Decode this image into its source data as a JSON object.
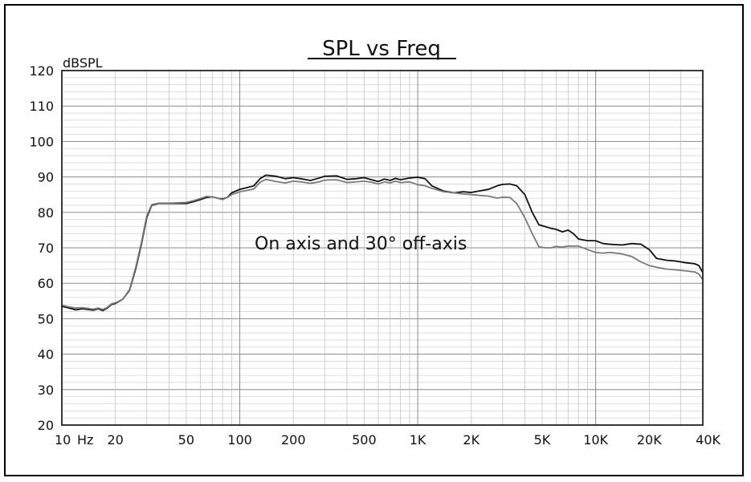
{
  "chart_data": {
    "type": "line",
    "title": "SPL vs Freq",
    "ylabel": "dBSPL",
    "xlabel": "",
    "x_scale": "log",
    "xlim": [
      10,
      40000
    ],
    "ylim": [
      20,
      120
    ],
    "grid": true,
    "y_ticks": [
      120,
      110,
      100,
      90,
      80,
      70,
      60,
      50,
      40,
      30,
      20
    ],
    "x_ticks": [
      {
        "value": 10,
        "label": "10"
      },
      {
        "value": 20,
        "label": "20"
      },
      {
        "value": 50,
        "label": "50"
      },
      {
        "value": 100,
        "label": "100"
      },
      {
        "value": 200,
        "label": "200"
      },
      {
        "value": 500,
        "label": "500"
      },
      {
        "value": 1000,
        "label": "1K"
      },
      {
        "value": 2000,
        "label": "2K"
      },
      {
        "value": 5000,
        "label": "5K"
      },
      {
        "value": 10000,
        "label": "10K"
      },
      {
        "value": 20000,
        "label": "20K"
      },
      {
        "value": 40000,
        "label": "40K"
      }
    ],
    "x_unit_label": "Hz",
    "annotation": "On axis and 30° off-axis",
    "series": [
      {
        "color": "#111111",
        "points": [
          [
            10,
            53.5
          ],
          [
            11,
            53
          ],
          [
            12,
            52.5
          ],
          [
            13,
            52.8
          ],
          [
            14,
            52.6
          ],
          [
            15,
            52.4
          ],
          [
            16,
            52.8
          ],
          [
            17,
            52.3
          ],
          [
            18,
            53
          ],
          [
            19,
            54
          ],
          [
            20,
            54.3
          ],
          [
            22,
            55.5
          ],
          [
            24,
            58
          ],
          [
            26,
            64
          ],
          [
            28,
            71
          ],
          [
            30,
            78.5
          ],
          [
            32,
            82
          ],
          [
            35,
            82.5
          ],
          [
            40,
            82.5
          ],
          [
            50,
            82.5
          ],
          [
            55,
            83
          ],
          [
            60,
            83.6
          ],
          [
            65,
            84.2
          ],
          [
            70,
            84.4
          ],
          [
            75,
            84
          ],
          [
            80,
            83.8
          ],
          [
            85,
            84.2
          ],
          [
            90,
            85.5
          ],
          [
            100,
            86.5
          ],
          [
            110,
            87
          ],
          [
            120,
            87.5
          ],
          [
            130,
            89.5
          ],
          [
            140,
            90.5
          ],
          [
            160,
            90.2
          ],
          [
            180,
            89.5
          ],
          [
            200,
            89.8
          ],
          [
            220,
            89.5
          ],
          [
            250,
            89
          ],
          [
            280,
            89.7
          ],
          [
            300,
            90.2
          ],
          [
            350,
            90.3
          ],
          [
            400,
            89.3
          ],
          [
            450,
            89.5
          ],
          [
            500,
            89.8
          ],
          [
            550,
            89.2
          ],
          [
            600,
            88.7
          ],
          [
            650,
            89.4
          ],
          [
            700,
            89
          ],
          [
            750,
            89.6
          ],
          [
            800,
            89.2
          ],
          [
            900,
            89.7
          ],
          [
            1000,
            89.9
          ],
          [
            1100,
            89.5
          ],
          [
            1200,
            87.5
          ],
          [
            1400,
            86
          ],
          [
            1600,
            85.5
          ],
          [
            1800,
            85.8
          ],
          [
            2000,
            85.6
          ],
          [
            2200,
            86
          ],
          [
            2500,
            86.5
          ],
          [
            2800,
            87.5
          ],
          [
            3000,
            87.9
          ],
          [
            3300,
            88
          ],
          [
            3600,
            87.5
          ],
          [
            4000,
            85
          ],
          [
            4400,
            80
          ],
          [
            4800,
            76.5
          ],
          [
            5200,
            76
          ],
          [
            5600,
            75.5
          ],
          [
            6000,
            75.2
          ],
          [
            6500,
            74.5
          ],
          [
            7000,
            75
          ],
          [
            7500,
            74
          ],
          [
            8000,
            72.5
          ],
          [
            9000,
            72
          ],
          [
            10000,
            72
          ],
          [
            11000,
            71.2
          ],
          [
            12000,
            71
          ],
          [
            14000,
            70.8
          ],
          [
            16000,
            71.2
          ],
          [
            18000,
            71
          ],
          [
            20000,
            69.5
          ],
          [
            22000,
            67
          ],
          [
            25000,
            66.5
          ],
          [
            28000,
            66.3
          ],
          [
            32000,
            65.8
          ],
          [
            36000,
            65.5
          ],
          [
            38000,
            65
          ],
          [
            40000,
            63
          ]
        ]
      },
      {
        "color": "#7a7a7a",
        "points": [
          [
            10,
            53.8
          ],
          [
            11,
            53.3
          ],
          [
            12,
            53
          ],
          [
            13,
            53.1
          ],
          [
            14,
            52.9
          ],
          [
            15,
            52.7
          ],
          [
            16,
            53
          ],
          [
            17,
            52.6
          ],
          [
            18,
            53.2
          ],
          [
            19,
            54.2
          ],
          [
            20,
            54.5
          ],
          [
            22,
            55.5
          ],
          [
            24,
            58.2
          ],
          [
            26,
            64.5
          ],
          [
            28,
            71.5
          ],
          [
            30,
            79
          ],
          [
            32,
            82.2
          ],
          [
            35,
            82.6
          ],
          [
            40,
            82.6
          ],
          [
            50,
            82.8
          ],
          [
            55,
            83.3
          ],
          [
            60,
            83.9
          ],
          [
            65,
            84.5
          ],
          [
            70,
            84.4
          ],
          [
            75,
            84
          ],
          [
            80,
            83.6
          ],
          [
            85,
            84.2
          ],
          [
            90,
            85
          ],
          [
            100,
            85.8
          ],
          [
            110,
            86.2
          ],
          [
            120,
            86.6
          ],
          [
            130,
            88.5
          ],
          [
            140,
            89.3
          ],
          [
            160,
            88.7
          ],
          [
            180,
            88.3
          ],
          [
            200,
            88.8
          ],
          [
            220,
            88.6
          ],
          [
            250,
            88.2
          ],
          [
            280,
            88.6
          ],
          [
            300,
            89.1
          ],
          [
            350,
            89.2
          ],
          [
            400,
            88.4
          ],
          [
            450,
            88.6
          ],
          [
            500,
            88.8
          ],
          [
            550,
            88.5
          ],
          [
            600,
            88
          ],
          [
            650,
            88.6
          ],
          [
            700,
            88.3
          ],
          [
            750,
            88.8
          ],
          [
            800,
            88.4
          ],
          [
            900,
            88.6
          ],
          [
            1000,
            87.8
          ],
          [
            1100,
            87.5
          ],
          [
            1200,
            86.8
          ],
          [
            1400,
            85.8
          ],
          [
            1600,
            85.5
          ],
          [
            1800,
            85.2
          ],
          [
            2000,
            85
          ],
          [
            2200,
            84.8
          ],
          [
            2500,
            84.6
          ],
          [
            2800,
            84
          ],
          [
            3000,
            84.3
          ],
          [
            3300,
            84.2
          ],
          [
            3600,
            82.5
          ],
          [
            4000,
            78.5
          ],
          [
            4400,
            74
          ],
          [
            4800,
            70.3
          ],
          [
            5200,
            70
          ],
          [
            5600,
            70
          ],
          [
            6000,
            70.4
          ],
          [
            6500,
            70.2
          ],
          [
            7000,
            70.5
          ],
          [
            8000,
            70.5
          ],
          [
            9000,
            69.5
          ],
          [
            10000,
            68.7
          ],
          [
            11000,
            68.5
          ],
          [
            12000,
            68.7
          ],
          [
            14000,
            68.3
          ],
          [
            16000,
            67.5
          ],
          [
            18000,
            66
          ],
          [
            20000,
            65
          ],
          [
            22000,
            64.5
          ],
          [
            25000,
            64
          ],
          [
            28000,
            63.8
          ],
          [
            32000,
            63.5
          ],
          [
            36000,
            63.2
          ],
          [
            38000,
            62.6
          ],
          [
            40000,
            61
          ]
        ]
      }
    ]
  }
}
